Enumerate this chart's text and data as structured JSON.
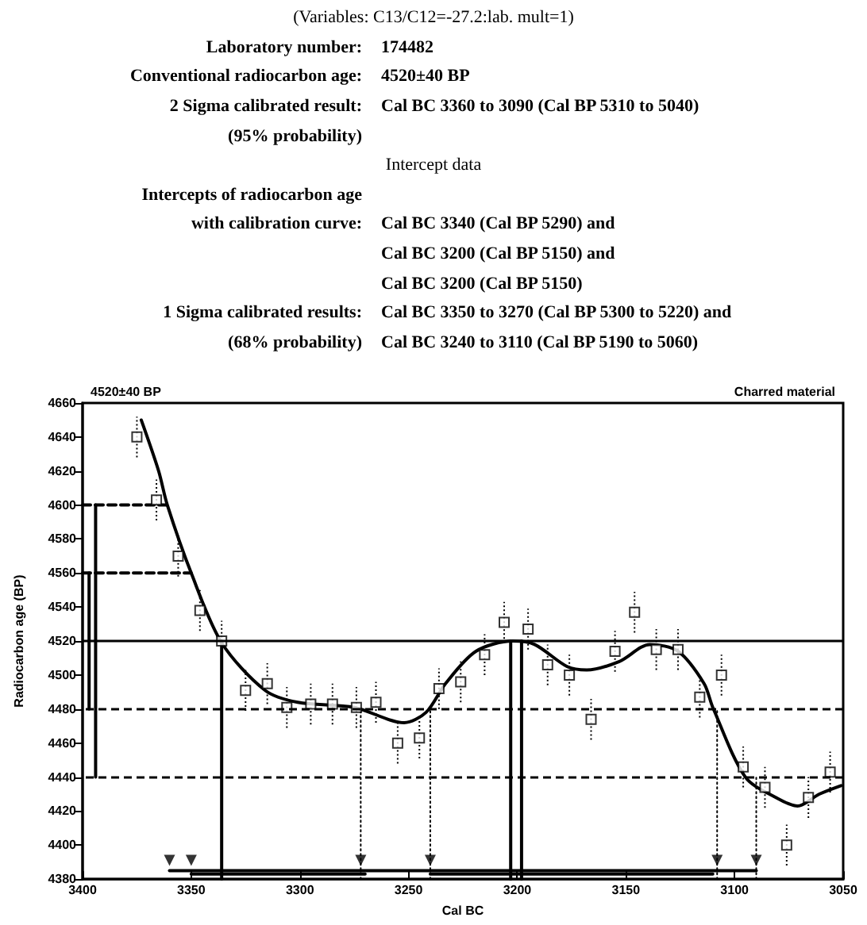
{
  "chart_data": {
    "type": "line",
    "title": "4520±40 BP",
    "subtitle": "Charred material",
    "xlabel": "Cal BC",
    "ylabel": "Radiocarbon age (BP)",
    "annotations": [
      "(Variables:  C13/C12=-27.2:lab. mult=1)",
      "Laboratory number:\t174482",
      "Conventional radiocarbon age:\t4520±40 BP",
      "2 Sigma calibrated result:\tCal BC 3360 to 3090 (Cal BP 5310 to 5040)",
      "(95% probability)\t",
      "Intercept data",
      "Intercepts of radiocarbon age\t",
      "with calibration curve:\tCal BC 3340 (Cal BP 5290) and",
      "\tCal BC 3200 (Cal BP 5150) and",
      "\tCal BC 3200 (Cal BP 5150)",
      "1 Sigma calibrated results:\tCal BC 3350 to 3270 (Cal BP 5300 to 5220) and",
      "(68% probability)\tCal BC 3240 to 3110 (Cal BP 5190 to 5060)"
    ],
    "xlim": [
      3400,
      3050
    ],
    "xticks": [
      3400,
      3350,
      3300,
      3250,
      3200,
      3150,
      3100,
      3050
    ],
    "ylim": [
      4380,
      4660
    ],
    "yticks": [
      4380,
      4400,
      4420,
      4440,
      4460,
      4480,
      4500,
      4520,
      4540,
      4560,
      4580,
      4600,
      4620,
      4640,
      4660
    ],
    "grid": false,
    "ref_lines": [
      {
        "axis": "y",
        "value": 4520,
        "color": "#000000",
        "line_style": "solid"
      },
      {
        "axis": "y",
        "value": 4480,
        "color": "#000000",
        "line_style": "dashed"
      },
      {
        "axis": "y",
        "value": 4440,
        "color": "#000000",
        "line_style": "dashed"
      }
    ],
    "series": [
      {
        "color": "#000000",
        "marker": "none",
        "line_style": "solid",
        "x": [
          3373,
          3365,
          3361,
          3350,
          3336,
          3316,
          3301,
          3275,
          3252,
          3242,
          3233,
          3219,
          3202,
          3192,
          3177,
          3168,
          3153,
          3139,
          3126,
          3114,
          3110,
          3095,
          3081,
          3071,
          3061,
          3051
        ],
        "values": [
          4650,
          4620,
          4600,
          4560,
          4519,
          4491,
          4484,
          4481,
          4472,
          4478,
          4495,
          4514,
          4520,
          4518,
          4505,
          4503,
          4508,
          4518,
          4514,
          4495,
          4481,
          4440,
          4428,
          4423,
          4430,
          4435
        ]
      },
      {
        "type": "scatter",
        "color": "#000000",
        "marker": "square",
        "x": [
          3375,
          3366,
          3356,
          3346,
          3336,
          3325,
          3315,
          3306,
          3295,
          3285,
          3274,
          3265,
          3255,
          3245,
          3236,
          3226,
          3215,
          3206,
          3195,
          3186,
          3176,
          3166,
          3155,
          3146,
          3136,
          3126,
          3116,
          3106,
          3096,
          3086,
          3076,
          3066,
          3056
        ],
        "values": [
          4640,
          4603,
          4570,
          4538,
          4520,
          4491,
          4495,
          4481,
          4483,
          4483,
          4481,
          4484,
          4460,
          4463,
          4492,
          4496,
          4512,
          4531,
          4527,
          4506,
          4500,
          4474,
          4514,
          4537,
          4515,
          4515,
          4487,
          4500,
          4446,
          4434,
          4400,
          4428,
          4443
        ],
        "errors": [
          12,
          12,
          12,
          12,
          12,
          12,
          12,
          12,
          12,
          12,
          12,
          12,
          12,
          12,
          12,
          12,
          12,
          12,
          12,
          12,
          12,
          12,
          12,
          12,
          12,
          12,
          12,
          12,
          12,
          12,
          12,
          12,
          12
        ]
      },
      {
        "color": "#000000",
        "marker": "none",
        "line_style": "dashed",
        "x": [
          3400,
          3361
        ],
        "values": [
          4600,
          4600
        ]
      },
      {
        "color": "#000000",
        "marker": "none",
        "line_style": "dashed",
        "x": [
          3400,
          3350
        ],
        "values": [
          4560,
          4560
        ]
      },
      {
        "color": "#000000",
        "marker": "none",
        "line_style": "solid",
        "x": [
          3397,
          3397
        ],
        "values": [
          4480,
          4560
        ]
      },
      {
        "color": "#000000",
        "marker": "none",
        "line_style": "solid",
        "x": [
          3394,
          3394
        ],
        "values": [
          4440,
          4600
        ]
      },
      {
        "color": "#000000",
        "marker": "none",
        "line_style": "solid",
        "x": [
          3336,
          3336
        ],
        "values": [
          4380,
          4520
        ]
      },
      {
        "color": "#000000",
        "marker": "none",
        "line_style": "solid",
        "x": [
          3203,
          3203
        ],
        "values": [
          4380,
          4520
        ]
      },
      {
        "color": "#000000",
        "marker": "none",
        "line_style": "solid",
        "x": [
          3198,
          3198
        ],
        "values": [
          4380,
          4520
        ]
      },
      {
        "color": "#000000",
        "marker": "none",
        "line_style": "dotted",
        "x": [
          3272,
          3272
        ],
        "values": [
          4380,
          4480
        ]
      },
      {
        "color": "#000000",
        "marker": "none",
        "line_style": "dotted",
        "x": [
          3240,
          3240
        ],
        "values": [
          4380,
          4480
        ]
      },
      {
        "color": "#000000",
        "marker": "none",
        "line_style": "dotted",
        "x": [
          3108,
          3108
        ],
        "values": [
          4380,
          4480
        ]
      },
      {
        "color": "#000000",
        "marker": "none",
        "line_style": "dotted",
        "x": [
          3090,
          3090
        ],
        "values": [
          4380,
          4440
        ]
      },
      {
        "color": "#000000",
        "marker": "none",
        "line_style": "solid",
        "x": [
          3360,
          3090
        ],
        "values": [
          4385,
          4385
        ]
      },
      {
        "color": "#000000",
        "marker": "none",
        "line_style": "solid",
        "x": [
          3350,
          3270
        ],
        "values": [
          4383,
          4383
        ]
      },
      {
        "color": "#000000",
        "marker": "none",
        "line_style": "solid",
        "x": [
          3240,
          3110
        ],
        "values": [
          4383,
          4383
        ]
      },
      {
        "type": "scatter",
        "color": "#000000",
        "marker": "triangle",
        "x": [
          3360,
          3350,
          3272,
          3240,
          3108,
          3090
        ],
        "values": [
          4391,
          4391,
          4391,
          4391,
          4391,
          4391
        ]
      }
    ]
  }
}
